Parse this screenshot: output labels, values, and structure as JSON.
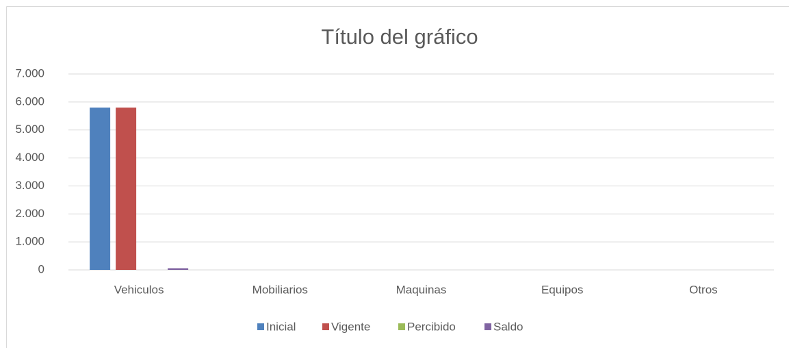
{
  "chart_data": {
    "type": "bar",
    "title": "Título del gráfico",
    "categories": [
      "Vehiculos",
      "Mobiliarios",
      "Maquinas",
      "Equipos",
      "Otros"
    ],
    "series": [
      {
        "name": "Inicial",
        "color": "#4f81bd",
        "values": [
          5800,
          0,
          0,
          0,
          0
        ]
      },
      {
        "name": "Vigente",
        "color": "#c0504d",
        "values": [
          5800,
          0,
          0,
          0,
          0
        ]
      },
      {
        "name": "Percibido",
        "color": "#9bbb59",
        "values": [
          0,
          0,
          0,
          0,
          0
        ]
      },
      {
        "name": "Saldo",
        "color": "#8064a2",
        "values": [
          60,
          0,
          0,
          0,
          0
        ]
      }
    ],
    "ylim": [
      0,
      7000
    ],
    "yticks": [
      0,
      {
        "value": 1000,
        "label": "1.000"
      },
      {
        "value": 2000,
        "label": "2.000"
      },
      {
        "value": 3000,
        "label": "3.000"
      },
      {
        "value": 4000,
        "label": "4.000"
      },
      {
        "value": 5000,
        "label": "5.000"
      },
      {
        "value": 6000,
        "label": "6.000"
      },
      {
        "value": 7000,
        "label": "7.000"
      }
    ],
    "grid": true,
    "legend": "bottom"
  }
}
